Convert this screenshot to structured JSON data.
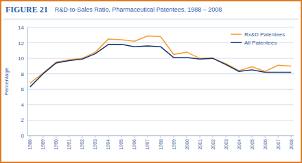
{
  "chart_data": {
    "type": "line",
    "title": "FIGURE 21",
    "subtitle": "R&D-to-Sales Ratio, Pharmaceutical Patentees, 1988 – 2008",
    "y_label": "Percentage",
    "x": [
      1988,
      1989,
      1990,
      1991,
      1992,
      1993,
      1994,
      1995,
      1996,
      1997,
      1998,
      1999,
      2000,
      2001,
      2002,
      2003,
      2004,
      2005,
      2006,
      2007,
      2008
    ],
    "series": [
      {
        "name": "Rx&D Patentees",
        "color": "#f5a030",
        "values": [
          6.8,
          8.1,
          9.5,
          9.8,
          10.0,
          10.8,
          12.5,
          12.4,
          12.2,
          12.9,
          12.8,
          10.5,
          10.8,
          10.0,
          10.0,
          9.3,
          8.4,
          8.9,
          8.3,
          9.1,
          9.0
        ]
      },
      {
        "name": "All Patentees",
        "color": "#1a3870",
        "values": [
          6.3,
          8.0,
          9.4,
          9.7,
          9.9,
          10.6,
          11.8,
          11.8,
          11.5,
          11.6,
          11.5,
          10.1,
          10.1,
          9.9,
          10.0,
          9.2,
          8.3,
          8.5,
          8.2,
          8.2,
          8.2
        ]
      }
    ],
    "xlim": [
      1987.8,
      2008.2
    ],
    "xticks": [
      1988,
      1989,
      1990,
      1991,
      1992,
      1993,
      1994,
      1995,
      1996,
      1997,
      1998,
      1999,
      2000,
      2001,
      2002,
      2003,
      2004,
      2005,
      2006,
      2007,
      2008
    ],
    "ylim": [
      0,
      14
    ],
    "yticks": [
      0,
      2,
      4,
      6,
      8,
      10,
      12,
      14
    ],
    "grid": true,
    "legend": "upper right"
  }
}
